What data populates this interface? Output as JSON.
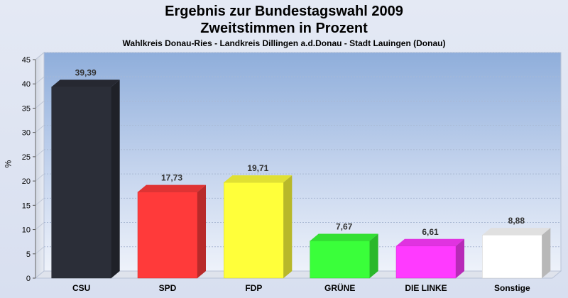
{
  "chart_data": {
    "type": "bar",
    "title": "Ergebnis zur Bundestagswahl 2009",
    "subtitle_line": "Zweitstimmen in Prozent",
    "subtitle": "Wahlkreis Donau-Ries - Landkreis Dillingen a.d.Donau - Stadt Lauingen (Donau)",
    "ylabel": "%",
    "xlabel": "",
    "ylim": [
      0,
      45
    ],
    "yticks": [
      "0",
      "5",
      "10",
      "15",
      "20",
      "25",
      "30",
      "35",
      "40",
      "45"
    ],
    "categories": [
      "CSU",
      "SPD",
      "FDP",
      "GRÜNE",
      "DIE LINKE",
      "Sonstige"
    ],
    "values": [
      39.39,
      17.73,
      19.71,
      7.67,
      6.61,
      8.88
    ],
    "value_labels": [
      "39,39",
      "17,73",
      "19,71",
      "7,67",
      "6,61",
      "8,88"
    ],
    "colors": [
      "#2b2e38",
      "#ff3a3a",
      "#ffff3a",
      "#3aff3a",
      "#ff3aff",
      "#ffffff"
    ],
    "grid": true,
    "legend": "none"
  }
}
